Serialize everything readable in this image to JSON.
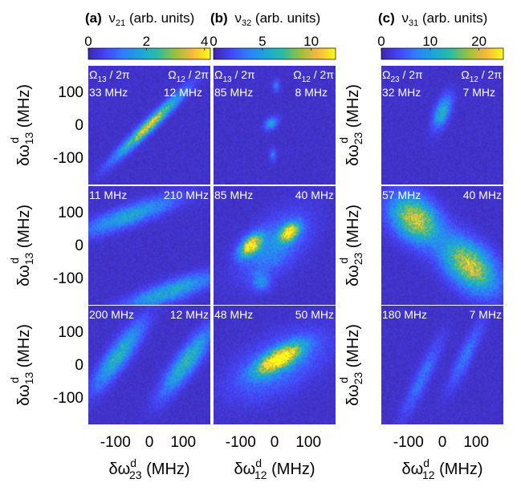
{
  "chart_data": {
    "type": "heatmap",
    "panel_headers": [
      {
        "label": "(a)",
        "quantity": "ν",
        "sub": "21",
        "unit": "(arb. units)"
      },
      {
        "label": "(b)",
        "quantity": "ν",
        "sub": "32",
        "unit": "(arb. units)"
      },
      {
        "label": "(c)",
        "quantity": "ν",
        "sub": "31",
        "unit": "(arb. units)"
      }
    ],
    "colorbars": [
      {
        "range": [
          0,
          4.2
        ],
        "ticks": [
          "0",
          "2",
          "4"
        ],
        "tick_values": [
          0,
          2,
          4
        ]
      },
      {
        "range": [
          0,
          12.5
        ],
        "ticks": [
          "0",
          "5",
          "10"
        ],
        "tick_values": [
          0,
          5,
          10
        ]
      },
      {
        "range": [
          0,
          25
        ],
        "ticks": [
          "0",
          "10",
          "20"
        ],
        "tick_values": [
          0,
          10,
          20
        ]
      }
    ],
    "colormap": [
      "#3e26a8",
      "#4645f8",
      "#2f7ff8",
      "#1ba5dc",
      "#2dbca0",
      "#9bc03e",
      "#f7b83f",
      "#f9fb15"
    ],
    "axis_range": [
      -180,
      180
    ],
    "axis_ticks": [
      "-100",
      "0",
      "100"
    ],
    "tick_values": [
      -100,
      0,
      100
    ],
    "y_labels": [
      {
        "sym": "δω",
        "sup": "d",
        "sub": "13",
        "unit": "(MHz)"
      },
      {
        "sym": "δω",
        "sup": "d",
        "sub": "23",
        "unit": "(MHz)"
      }
    ],
    "x_labels": [
      {
        "sym": "δω",
        "sup": "d",
        "sub": "23",
        "unit": "(MHz)"
      },
      {
        "sym": "δω",
        "sup": "d",
        "sub": "12",
        "unit": "(MHz)"
      },
      {
        "sym": "δω",
        "sup": "d",
        "sub": "12",
        "unit": "(MHz)"
      }
    ],
    "rabi_headers": [
      {
        "left": "Ω",
        "left_sub": "13",
        "left_tail": " / 2π",
        "right": "Ω",
        "right_sub": "12",
        "right_tail": " / 2π"
      },
      {
        "left": "Ω",
        "left_sub": "13",
        "left_tail": " / 2π",
        "right": "Ω",
        "right_sub": "12",
        "right_tail": " / 2π"
      },
      {
        "left": "Ω",
        "left_sub": "23",
        "left_tail": " / 2π",
        "right": "Ω",
        "right_sub": "12",
        "right_tail": " / 2π"
      }
    ],
    "panels": [
      [
        {
          "left": "33 MHz",
          "right": "12 MHz",
          "features": [
            {
              "cx": 0,
              "cy": 0,
              "a": 180,
              "b": 16,
              "ang": 45,
              "amp": 3.2
            }
          ]
        },
        {
          "left": "11 MHz",
          "right": "210 MHz",
          "features": [
            {
              "cx": -60,
              "cy": 90,
              "a": 200,
              "b": 28,
              "ang": 20,
              "amp": 1.6
            },
            {
              "cx": 60,
              "cy": -140,
              "a": 200,
              "b": 28,
              "ang": 20,
              "amp": 1.7
            }
          ]
        },
        {
          "left": "200 MHz",
          "right": "12 MHz",
          "features": [
            {
              "cx": -90,
              "cy": 30,
              "a": 160,
              "b": 28,
              "ang": 55,
              "amp": 1.9
            },
            {
              "cx": 110,
              "cy": 10,
              "a": 160,
              "b": 28,
              "ang": 55,
              "amp": 2.0
            }
          ]
        }
      ],
      [
        {
          "left": "85 MHz",
          "right": "8 MHz",
          "features": [
            {
              "cx": -10,
              "cy": 5,
              "a": 30,
              "b": 14,
              "ang": 45,
              "amp": 4.5
            },
            {
              "cx": -5,
              "cy": -90,
              "a": 25,
              "b": 10,
              "ang": 90,
              "amp": 2.5
            },
            {
              "cx": 5,
              "cy": 120,
              "a": 25,
              "b": 10,
              "ang": 90,
              "amp": 2.5
            }
          ]
        },
        {
          "left": "85 MHz",
          "right": "40 MHz",
          "features": [
            {
              "cx": -70,
              "cy": 0,
              "a": 55,
              "b": 22,
              "ang": 45,
              "amp": 11
            },
            {
              "cx": 45,
              "cy": 40,
              "a": 45,
              "b": 20,
              "ang": 45,
              "amp": 10.5
            },
            {
              "cx": 0,
              "cy": 0,
              "a": 160,
              "b": 60,
              "ang": 45,
              "amp": 3.5
            },
            {
              "cx": -40,
              "cy": -110,
              "a": 40,
              "b": 25,
              "ang": 90,
              "amp": 3
            }
          ]
        },
        {
          "left": "48 MHz",
          "right": "50 MHz",
          "features": [
            {
              "cx": 15,
              "cy": 20,
              "a": 100,
              "b": 26,
              "ang": 30,
              "amp": 12
            },
            {
              "cx": 10,
              "cy": 0,
              "a": 200,
              "b": 70,
              "ang": 30,
              "amp": 3
            }
          ]
        }
      ],
      [
        {
          "left": "32 MHz",
          "right": "7 MHz",
          "features": [
            {
              "cx": 0,
              "cy": 40,
              "a": 70,
              "b": 20,
              "ang": 70,
              "amp": 11
            }
          ]
        },
        {
          "left": "57 MHz",
          "right": "40 MHz",
          "features": [
            {
              "cx": -80,
              "cy": 80,
              "a": 110,
              "b": 55,
              "ang": -45,
              "amp": 19
            },
            {
              "cx": 80,
              "cy": -60,
              "a": 130,
              "b": 55,
              "ang": -45,
              "amp": 19
            }
          ]
        },
        {
          "left": "180 MHz",
          "right": "7 MHz",
          "features": [
            {
              "cx": -60,
              "cy": -40,
              "a": 170,
              "b": 20,
              "ang": 65,
              "amp": 5
            },
            {
              "cx": 70,
              "cy": 30,
              "a": 150,
              "b": 20,
              "ang": 65,
              "amp": 5
            }
          ]
        }
      ]
    ]
  }
}
